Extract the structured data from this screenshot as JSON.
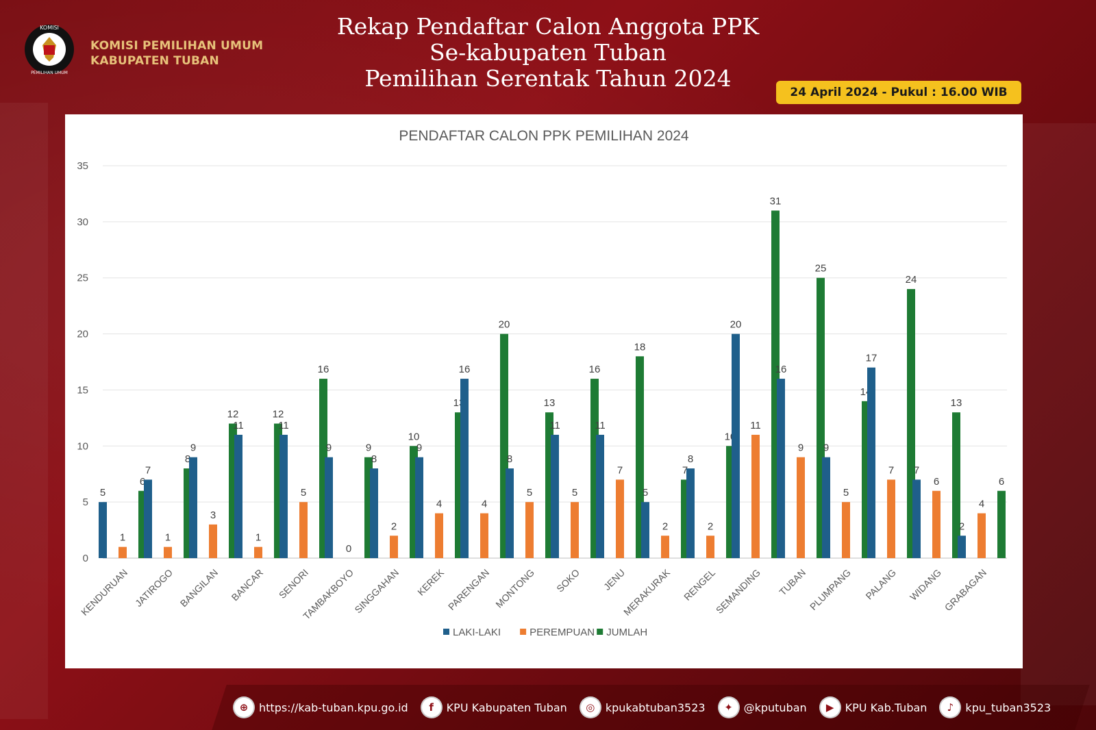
{
  "header": {
    "org_line1": "KOMISI PEMILIHAN UMUM",
    "org_line2": "KABUPATEN TUBAN",
    "logo_text_top": "KOMISI",
    "logo_text_bottom": "PEMILIHAN UMUM",
    "title_line1": "Rekap Pendaftar Calon Anggota PPK",
    "title_line2": "Se-kabupaten Tuban",
    "title_line3": "Pemilihan Serentak Tahun 2024",
    "date": "24 April 2024 - Pukul : 16.00 WIB"
  },
  "colors": {
    "laki_laki": "#1f5f8b",
    "perempuan": "#ed7d31",
    "jumlah": "#1e7b34",
    "badge": "#f5c11e"
  },
  "chart_data": {
    "type": "bar",
    "title": "PENDAFTAR CALON PPK PEMILIHAN 2024",
    "xlabel": "",
    "ylabel": "",
    "ylim": [
      0,
      35
    ],
    "yticks": [
      0,
      5,
      10,
      15,
      20,
      25,
      30,
      35
    ],
    "grid": true,
    "legend_position": "bottom",
    "categories": [
      "KENDURUAN",
      "JATIROGO",
      "BANGILAN",
      "BANCAR",
      "SENORI",
      "TAMBAKBOYO",
      "SINGGAHAN",
      "KEREK",
      "PARENGAN",
      "MONTONG",
      "SOKO",
      "JENU",
      "MERAKURAK",
      "RENGEL",
      "SEMANDING",
      "TUBAN",
      "PLUMPANG",
      "PALANG",
      "WIDANG",
      "GRABAGAN"
    ],
    "series": [
      {
        "name": "LAKI-LAKI",
        "values": [
          5,
          7,
          9,
          11,
          11,
          9,
          8,
          9,
          16,
          8,
          11,
          11,
          5,
          8,
          20,
          16,
          9,
          17,
          7,
          2
        ]
      },
      {
        "name": "PEREMPUAN",
        "values": [
          1,
          1,
          3,
          1,
          5,
          0,
          2,
          4,
          4,
          5,
          5,
          7,
          2,
          2,
          11,
          9,
          5,
          7,
          6,
          4
        ]
      },
      {
        "name": "JUMLAH",
        "values": [
          6,
          8,
          12,
          12,
          16,
          9,
          10,
          13,
          20,
          13,
          16,
          18,
          7,
          10,
          31,
          25,
          14,
          24,
          13,
          6
        ]
      }
    ]
  },
  "footer": {
    "items": [
      {
        "icon": "globe-icon",
        "glyph": "⊕",
        "text": "https://kab-tuban.kpu.go.id"
      },
      {
        "icon": "facebook-icon",
        "glyph": "f",
        "text": "KPU Kabupaten Tuban"
      },
      {
        "icon": "instagram-icon",
        "glyph": "◎",
        "text": "kpukabtuban3523"
      },
      {
        "icon": "twitter-icon",
        "glyph": "✦",
        "text": "@kputuban"
      },
      {
        "icon": "youtube-icon",
        "glyph": "▶",
        "text": "KPU Kab.Tuban"
      },
      {
        "icon": "tiktok-icon",
        "glyph": "♪",
        "text": "kpu_tuban3523"
      }
    ]
  }
}
